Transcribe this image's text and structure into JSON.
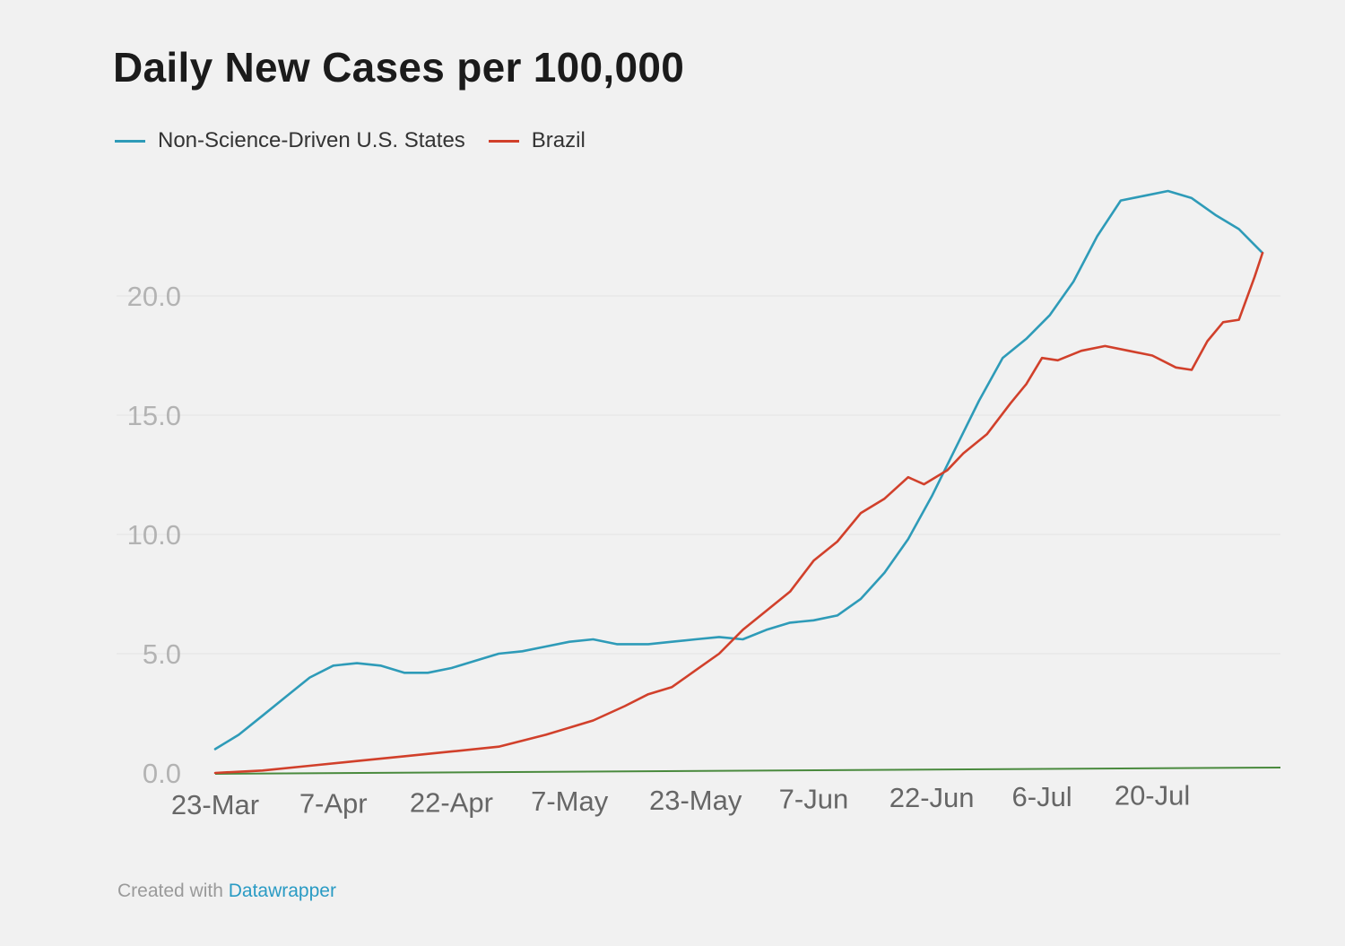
{
  "chart_data": {
    "type": "line",
    "title": "Daily New Cases per 100,000",
    "xlabel": "",
    "ylabel": "",
    "x_ticks": [
      "23-Mar",
      "7-Apr",
      "22-Apr",
      "7-May",
      "23-May",
      "7-Jun",
      "22-Jun",
      "6-Jul",
      "20-Jul"
    ],
    "y_ticks": [
      "0.0",
      "5.0",
      "10.0",
      "15.0",
      "20.0"
    ],
    "ylim": [
      0,
      25
    ],
    "grid": true,
    "legend_position": "top-left",
    "series": [
      {
        "name": "Non-Science-Driven U.S. States",
        "color": "#2e9bb8",
        "points": [
          [
            "2020-03-23",
            1.0
          ],
          [
            "2020-03-26",
            1.6
          ],
          [
            "2020-03-29",
            2.4
          ],
          [
            "2020-04-01",
            3.2
          ],
          [
            "2020-04-04",
            4.0
          ],
          [
            "2020-04-07",
            4.5
          ],
          [
            "2020-04-10",
            4.6
          ],
          [
            "2020-04-13",
            4.5
          ],
          [
            "2020-04-16",
            4.2
          ],
          [
            "2020-04-19",
            4.2
          ],
          [
            "2020-04-22",
            4.4
          ],
          [
            "2020-04-25",
            4.7
          ],
          [
            "2020-04-28",
            5.0
          ],
          [
            "2020-05-01",
            5.1
          ],
          [
            "2020-05-04",
            5.3
          ],
          [
            "2020-05-07",
            5.5
          ],
          [
            "2020-05-10",
            5.6
          ],
          [
            "2020-05-13",
            5.4
          ],
          [
            "2020-05-17",
            5.4
          ],
          [
            "2020-05-20",
            5.5
          ],
          [
            "2020-05-23",
            5.6
          ],
          [
            "2020-05-26",
            5.7
          ],
          [
            "2020-05-29",
            5.6
          ],
          [
            "2020-06-01",
            6.0
          ],
          [
            "2020-06-04",
            6.3
          ],
          [
            "2020-06-07",
            6.4
          ],
          [
            "2020-06-10",
            6.6
          ],
          [
            "2020-06-13",
            7.3
          ],
          [
            "2020-06-16",
            8.4
          ],
          [
            "2020-06-19",
            9.8
          ],
          [
            "2020-06-22",
            11.6
          ],
          [
            "2020-06-25",
            13.6
          ],
          [
            "2020-06-28",
            15.6
          ],
          [
            "2020-07-01",
            17.4
          ],
          [
            "2020-07-04",
            18.2
          ],
          [
            "2020-07-07",
            19.2
          ],
          [
            "2020-07-10",
            20.6
          ],
          [
            "2020-07-13",
            22.5
          ],
          [
            "2020-07-16",
            24.0
          ],
          [
            "2020-07-19",
            24.2
          ],
          [
            "2020-07-22",
            24.4
          ],
          [
            "2020-07-25",
            24.1
          ],
          [
            "2020-07-28",
            23.4
          ],
          [
            "2020-07-31",
            22.8
          ],
          [
            "2020-08-03",
            21.8
          ]
        ]
      },
      {
        "name": "Brazil",
        "color": "#d1402b",
        "points": [
          [
            "2020-03-23",
            0.0
          ],
          [
            "2020-03-29",
            0.1
          ],
          [
            "2020-04-04",
            0.3
          ],
          [
            "2020-04-10",
            0.5
          ],
          [
            "2020-04-16",
            0.7
          ],
          [
            "2020-04-22",
            0.9
          ],
          [
            "2020-04-28",
            1.1
          ],
          [
            "2020-05-04",
            1.6
          ],
          [
            "2020-05-10",
            2.2
          ],
          [
            "2020-05-14",
            2.8
          ],
          [
            "2020-05-17",
            3.3
          ],
          [
            "2020-05-20",
            3.6
          ],
          [
            "2020-05-23",
            4.3
          ],
          [
            "2020-05-26",
            5.0
          ],
          [
            "2020-05-29",
            6.0
          ],
          [
            "2020-06-01",
            6.8
          ],
          [
            "2020-06-04",
            7.6
          ],
          [
            "2020-06-07",
            8.9
          ],
          [
            "2020-06-10",
            9.7
          ],
          [
            "2020-06-13",
            10.9
          ],
          [
            "2020-06-16",
            11.5
          ],
          [
            "2020-06-19",
            12.4
          ],
          [
            "2020-06-21",
            12.1
          ],
          [
            "2020-06-24",
            12.7
          ],
          [
            "2020-06-26",
            13.4
          ],
          [
            "2020-06-29",
            14.2
          ],
          [
            "2020-07-02",
            15.5
          ],
          [
            "2020-07-04",
            16.3
          ],
          [
            "2020-07-06",
            17.4
          ],
          [
            "2020-07-08",
            17.3
          ],
          [
            "2020-07-11",
            17.7
          ],
          [
            "2020-07-14",
            17.9
          ],
          [
            "2020-07-17",
            17.7
          ],
          [
            "2020-07-20",
            17.5
          ],
          [
            "2020-07-23",
            17.0
          ],
          [
            "2020-07-25",
            16.9
          ],
          [
            "2020-07-27",
            18.1
          ],
          [
            "2020-07-29",
            18.9
          ],
          [
            "2020-07-31",
            19.0
          ],
          [
            "2020-08-02",
            20.8
          ],
          [
            "2020-08-03",
            21.8
          ]
        ]
      }
    ]
  },
  "credit": {
    "prefix": "Created with",
    "link": "Datawrapper"
  },
  "colors": {
    "axis": "#4a8a3e",
    "grid": "#e3e3e3",
    "tick_text": "#b3b3b3",
    "x_tick_text": "#666666"
  }
}
